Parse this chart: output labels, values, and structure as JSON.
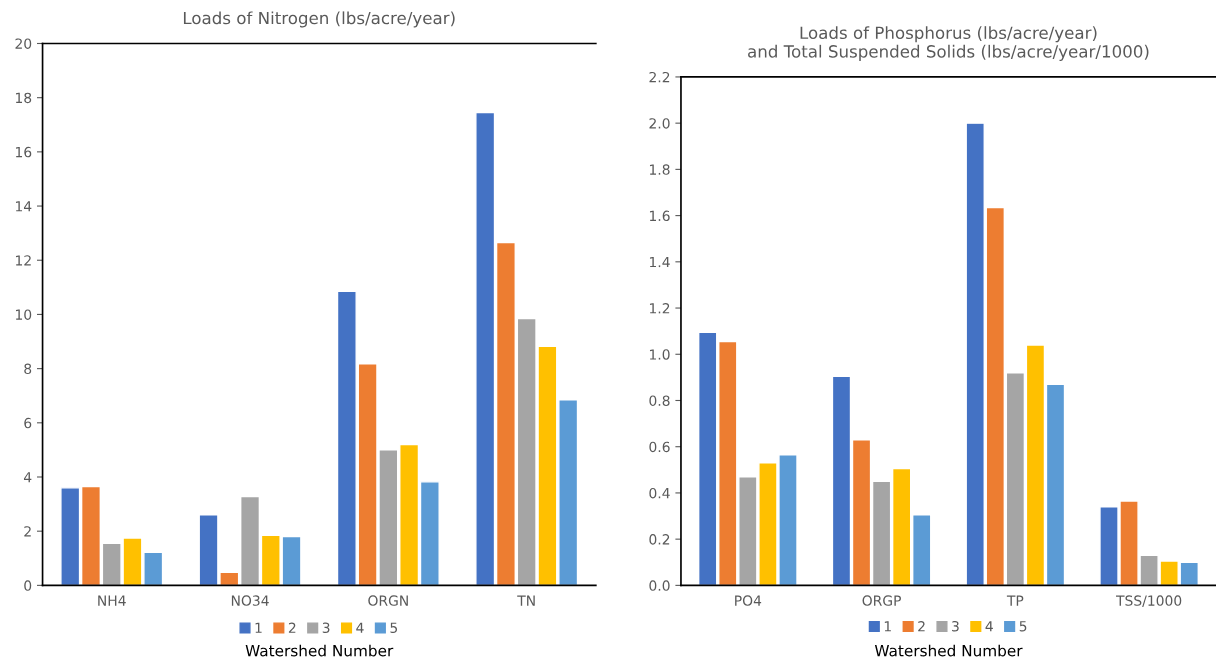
{
  "chart_data": [
    {
      "type": "bar",
      "title": "Loads of Nitrogen (lbs/acre/year)",
      "xlabel": "Watershed Number",
      "categories": [
        "NH4",
        "NO34",
        "ORGN",
        "TN"
      ],
      "ylim": [
        0,
        20
      ],
      "yticks": [
        0,
        2,
        4,
        6,
        8,
        10,
        12,
        14,
        16,
        18,
        20
      ],
      "grid": false,
      "legend": "bottom",
      "series": [
        {
          "name": "1",
          "color": "#4472c4",
          "values": [
            3.6,
            2.6,
            10.85,
            17.45
          ]
        },
        {
          "name": "2",
          "color": "#ed7d31",
          "values": [
            3.65,
            0.48,
            8.18,
            12.65
          ]
        },
        {
          "name": "3",
          "color": "#a5a5a5",
          "values": [
            1.55,
            3.28,
            5.0,
            9.85
          ]
        },
        {
          "name": "4",
          "color": "#ffc000",
          "values": [
            1.75,
            1.85,
            5.2,
            8.82
          ]
        },
        {
          "name": "5",
          "color": "#5b9bd5",
          "values": [
            1.22,
            1.8,
            3.82,
            6.85
          ]
        }
      ]
    },
    {
      "type": "bar",
      "title": "Loads of Phosphorus (lbs/acre/year)\nand Total Suspended Solids (lbs/acre/year/1000)",
      "xlabel": "Watershed Number",
      "categories": [
        "PO4",
        "ORGP",
        "TP",
        "TSS/1000"
      ],
      "ylim": [
        0,
        2.2
      ],
      "yticks": [
        {
          "value": 0,
          "label": "0.0"
        },
        {
          "value": 0.2,
          "label": "0.2"
        },
        {
          "value": 0.4,
          "label": "0.4"
        },
        {
          "value": 0.6,
          "label": "0.6"
        },
        {
          "value": 0.8,
          "label": "0.8"
        },
        {
          "value": 1.0,
          "label": "1.0"
        },
        {
          "value": 1.2,
          "label": "1.2"
        },
        {
          "value": 1.4,
          "label": "1.4"
        },
        {
          "value": 1.6,
          "label": "1.6"
        },
        {
          "value": 1.8,
          "label": "1.8"
        },
        {
          "value": 2.0,
          "label": "2.0"
        },
        {
          "value": 2.2,
          "label": "2.2"
        }
      ],
      "grid": false,
      "legend": "bottom",
      "series": [
        {
          "name": "1",
          "color": "#4472c4",
          "values": [
            1.095,
            0.905,
            2.0,
            0.34
          ]
        },
        {
          "name": "2",
          "color": "#ed7d31",
          "values": [
            1.055,
            0.63,
            1.635,
            0.365
          ]
        },
        {
          "name": "3",
          "color": "#a5a5a5",
          "values": [
            0.47,
            0.45,
            0.92,
            0.13
          ]
        },
        {
          "name": "4",
          "color": "#ffc000",
          "values": [
            0.53,
            0.505,
            1.04,
            0.105
          ]
        },
        {
          "name": "5",
          "color": "#5b9bd5",
          "values": [
            0.565,
            0.305,
            0.87,
            0.1
          ]
        }
      ]
    }
  ]
}
